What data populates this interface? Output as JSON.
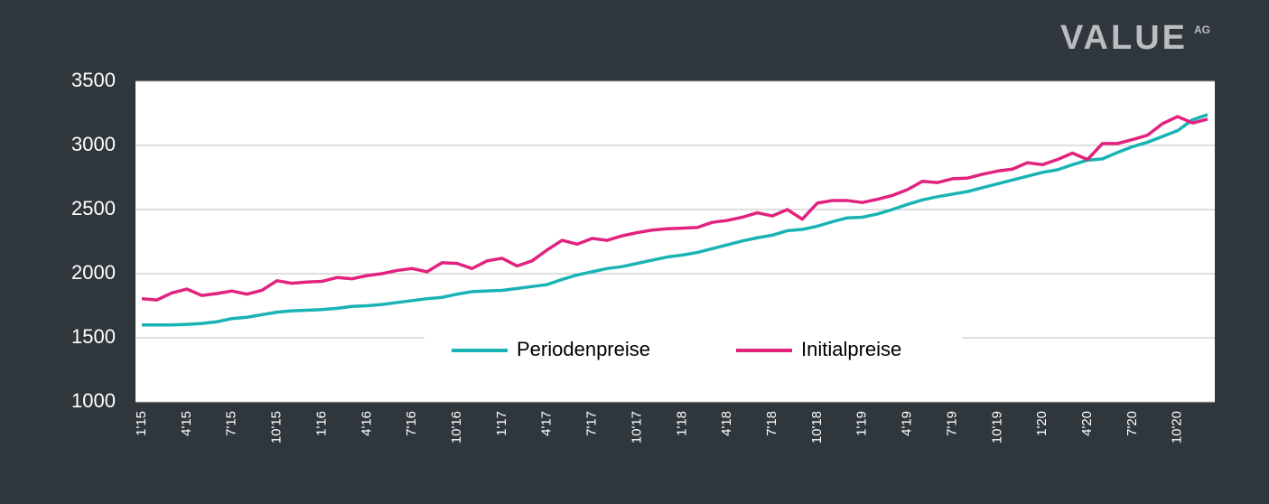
{
  "logo": "VALUE",
  "logo_suffix": "AG",
  "chart_data": {
    "type": "line",
    "categories": [
      "1'15",
      null,
      null,
      "4'15",
      null,
      null,
      "7'15",
      null,
      null,
      "10'15",
      null,
      null,
      "1'16",
      null,
      null,
      "4'16",
      null,
      null,
      "7'16",
      null,
      null,
      "10'16",
      null,
      null,
      "1'17",
      null,
      null,
      "4'17",
      null,
      null,
      "7'17",
      null,
      null,
      "10'17",
      null,
      null,
      "1'18",
      null,
      null,
      "4'18",
      null,
      null,
      "7'18",
      null,
      null,
      "10'18",
      null,
      null,
      "1'19",
      null,
      null,
      "4'19",
      null,
      null,
      "7'19",
      null,
      null,
      "10'19",
      null,
      null,
      "1'20",
      null,
      null,
      "4'20",
      null,
      null,
      "7'20",
      null,
      null,
      "10'20",
      null,
      null
    ],
    "series": [
      {
        "name": "Periodenpreise",
        "color": "#1ab3b5",
        "values": [
          1600,
          1600,
          1600,
          1605,
          1612,
          1625,
          1650,
          1660,
          1680,
          1700,
          1710,
          1715,
          1720,
          1730,
          1745,
          1750,
          1760,
          1775,
          1790,
          1805,
          1815,
          1840,
          1860,
          1865,
          1870,
          1885,
          1900,
          1915,
          1955,
          1990,
          2015,
          2040,
          2055,
          2080,
          2105,
          2130,
          2145,
          2165,
          2195,
          2225,
          2255,
          2280,
          2300,
          2335,
          2345,
          2370,
          2405,
          2435,
          2440,
          2465,
          2500,
          2540,
          2575,
          2600,
          2620,
          2640,
          2670,
          2700,
          2730,
          2760,
          2790,
          2810,
          2850,
          2885,
          2895,
          2945,
          2990,
          3025,
          3070,
          3115,
          3200,
          3240
        ]
      },
      {
        "name": "Initialpreise",
        "color": "#e2227f",
        "values": [
          1805,
          1795,
          1850,
          1880,
          1830,
          1845,
          1865,
          1840,
          1870,
          1945,
          1925,
          1935,
          1940,
          1970,
          1960,
          1985,
          2000,
          2025,
          2040,
          2015,
          2085,
          2080,
          2040,
          2100,
          2120,
          2060,
          2100,
          2185,
          2260,
          2230,
          2275,
          2260,
          2295,
          2320,
          2340,
          2350,
          2355,
          2360,
          2400,
          2415,
          2440,
          2475,
          2450,
          2500,
          2425,
          2550,
          2570,
          2570,
          2555,
          2580,
          2610,
          2655,
          2720,
          2710,
          2740,
          2745,
          2775,
          2800,
          2815,
          2865,
          2850,
          2890,
          2940,
          2890,
          3015,
          3015,
          3045,
          3080,
          3170,
          3225,
          3175,
          3205
        ]
      }
    ],
    "ylim": [
      1000,
      3500
    ],
    "yticks": [
      1000,
      1500,
      2000,
      2500,
      3000,
      3500
    ],
    "grid": true
  }
}
